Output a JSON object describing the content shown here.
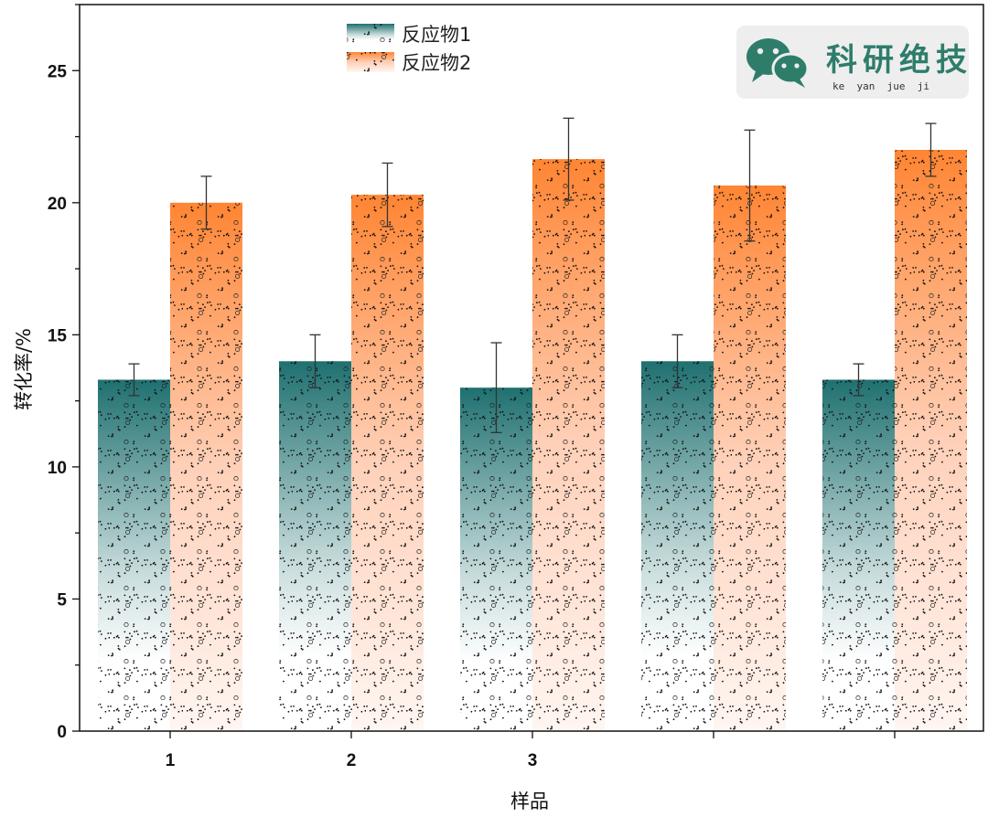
{
  "chart_data": {
    "type": "bar",
    "categories": [
      "1",
      "2",
      "3",
      "",
      ""
    ],
    "series": [
      {
        "name": "反应物1",
        "values": [
          13.3,
          14.0,
          13.0,
          14.0,
          13.3
        ],
        "errors": [
          0.6,
          1.0,
          1.7,
          1.0,
          0.6
        ],
        "color_top": "#1f7070",
        "color_bottom": "#ffffff"
      },
      {
        "name": "反应物2",
        "values": [
          20.0,
          20.3,
          21.65,
          20.65,
          22.0
        ],
        "errors": [
          1.0,
          1.2,
          1.55,
          2.1,
          1.0
        ],
        "color_top": "#ff8533",
        "color_bottom": "#fff6f2"
      }
    ],
    "xlabel": "样品",
    "ylabel": "转化率/%",
    "ylim": [
      0,
      27.5
    ],
    "yticks": [
      0,
      5,
      10,
      15,
      20,
      25
    ],
    "grid": false,
    "legend_position": "top-center",
    "pattern": "dots"
  },
  "watermark": {
    "title": "科研绝技",
    "subtitle": "ke  yan  jue  ji",
    "icon": "wechat-icon",
    "color": "#2e7d6b"
  }
}
